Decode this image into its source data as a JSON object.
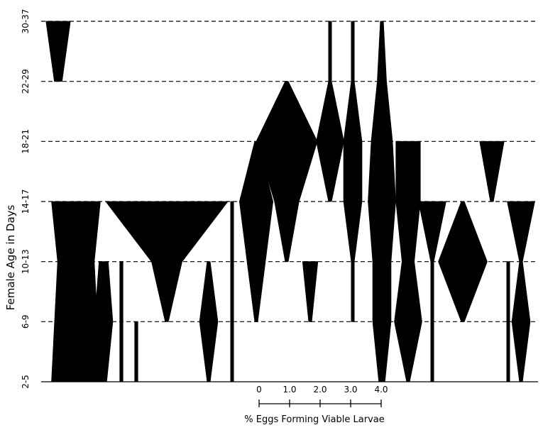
{
  "chart_data": {
    "type": "kite",
    "title": "",
    "ylabel": "Female Age in Days",
    "y_categories": [
      "2-5",
      "6-9",
      "10-13",
      "14-17",
      "18-21",
      "22-29",
      "30-37"
    ],
    "scale": {
      "label": "% Eggs Forming Viable Larvae",
      "ticks": [
        "0",
        "1.0",
        "2.0",
        "3.0",
        "4.0"
      ],
      "tick_values": [
        0,
        1,
        2,
        3,
        4
      ]
    },
    "grid": {
      "horizontal_dashed": true
    },
    "series": [
      {
        "values": [
          0,
          0,
          0,
          0,
          0,
          0.25,
          0.8
        ]
      },
      {
        "values": [
          1.6,
          1.4,
          1.2,
          1.6,
          0,
          0,
          0
        ]
      },
      {
        "values": [
          0.2,
          0.6,
          0.3,
          0,
          0,
          0,
          0
        ]
      },
      {
        "values": [
          0.1,
          0.1,
          0.1,
          0,
          0,
          0,
          0
        ]
      },
      {
        "values": [
          0.1,
          0.1,
          0,
          0,
          0,
          0,
          0
        ]
      },
      {
        "values": [
          0,
          0.1,
          1.0,
          4.0,
          0,
          0,
          0
        ]
      },
      {
        "values": [
          0.1,
          0.6,
          0.1,
          0,
          0,
          0,
          0
        ]
      },
      {
        "values": [
          0.1,
          0.1,
          0.1,
          0.1,
          0,
          0,
          0
        ]
      },
      {
        "values": [
          0,
          0.1,
          0.6,
          1.1,
          0.1,
          0,
          0
        ]
      },
      {
        "values": [
          0,
          0,
          0.1,
          0.8,
          2.0,
          0.1,
          0
        ]
      },
      {
        "values": [
          0,
          0.1,
          0.5,
          0,
          0,
          0,
          0
        ]
      },
      {
        "values": [
          0,
          0,
          0,
          0.1,
          0.9,
          0.1,
          0.1
        ]
      },
      {
        "values": [
          0,
          0.1,
          0.1,
          0.6,
          0.6,
          0.1,
          0.1
        ]
      },
      {
        "values": [
          0.2,
          0.6,
          0.6,
          0.9,
          0.7,
          0.3,
          0.1
        ]
      },
      {
        "values": [
          0.1,
          0.9,
          0.4,
          0.8,
          0.8,
          0,
          0
        ]
      },
      {
        "values": [
          0.1,
          0.1,
          0.1,
          0.9,
          0,
          0,
          0
        ]
      },
      {
        "values": [
          0,
          0.1,
          1.6,
          0.1,
          0,
          0,
          0
        ]
      },
      {
        "values": [
          0,
          0,
          0,
          0.1,
          0.8,
          0,
          0
        ]
      },
      {
        "values": [
          0.1,
          0.1,
          0.1,
          0,
          0,
          0,
          0
        ]
      },
      {
        "values": [
          0.1,
          0.6,
          0.1,
          0.9,
          0,
          0,
          0
        ]
      }
    ]
  }
}
